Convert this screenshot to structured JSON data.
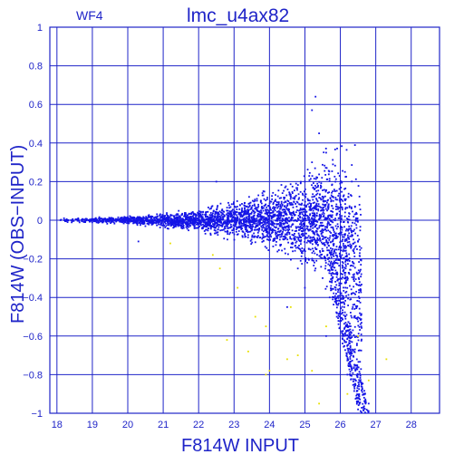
{
  "chart_data": {
    "type": "scatter",
    "title": "lmc_u4ax82",
    "subtitle": "WF4",
    "xlabel": "F814W  INPUT",
    "ylabel": "F814W  (OBS−INPUT)",
    "xlim": [
      17.8,
      28.8
    ],
    "ylim": [
      -1,
      1
    ],
    "xticks": [
      "18",
      "19",
      "20",
      "21",
      "22",
      "23",
      "24",
      "25",
      "26",
      "27",
      "28"
    ],
    "yticks": [
      "1",
      "0.8",
      "0.6",
      "0.4",
      "0.2",
      "0",
      "−0.2",
      "−0.4",
      "−0.6",
      "−0.8",
      "−1"
    ],
    "grid": true,
    "colors": {
      "axes": "#1f24c8",
      "main_points": "#1414e6",
      "secondary_points": "#e8e000"
    },
    "series": [
      {
        "color": "main_points",
        "points": [
          [
            18.1,
            0.0
          ],
          [
            18.2,
            0.01
          ],
          [
            18.3,
            -0.01
          ],
          [
            18.4,
            0.0
          ],
          [
            18.6,
            0.01
          ],
          [
            18.8,
            -0.01
          ],
          [
            19.0,
            0.0
          ],
          [
            19.2,
            0.01
          ],
          [
            19.4,
            -0.01
          ],
          [
            19.6,
            0.0
          ],
          [
            19.8,
            0.01
          ],
          [
            20.0,
            0.0
          ],
          [
            20.2,
            -0.01
          ],
          [
            20.4,
            0.01
          ],
          [
            20.6,
            0.0
          ],
          [
            20.8,
            -0.01
          ],
          [
            21.0,
            0.01
          ],
          [
            21.2,
            0.0
          ],
          [
            21.4,
            -0.02
          ],
          [
            21.6,
            0.02
          ],
          [
            21.8,
            0.0
          ],
          [
            22.0,
            -0.02
          ],
          [
            22.2,
            0.03
          ],
          [
            22.4,
            -0.03
          ],
          [
            22.6,
            0.02
          ],
          [
            22.8,
            -0.02
          ],
          [
            23.0,
            0.03
          ],
          [
            23.2,
            -0.04
          ],
          [
            23.4,
            0.04
          ],
          [
            23.6,
            -0.05
          ],
          [
            23.8,
            0.06
          ],
          [
            24.0,
            -0.07
          ],
          [
            24.2,
            0.08
          ],
          [
            24.4,
            -0.1
          ],
          [
            24.6,
            0.12
          ],
          [
            24.8,
            -0.14
          ],
          [
            25.0,
            0.2
          ],
          [
            25.1,
            -0.2
          ],
          [
            25.2,
            0.3
          ],
          [
            25.3,
            -0.25
          ],
          [
            25.4,
            0.45
          ],
          [
            25.5,
            -0.3
          ],
          [
            25.6,
            0.35
          ],
          [
            25.7,
            -0.4
          ],
          [
            25.8,
            0.1
          ],
          [
            25.9,
            -0.5
          ],
          [
            26.0,
            -0.3
          ],
          [
            26.1,
            -0.6
          ],
          [
            26.2,
            -0.55
          ],
          [
            26.3,
            -0.7
          ],
          [
            26.4,
            -0.75
          ],
          [
            26.5,
            -0.8
          ],
          [
            26.6,
            -0.85
          ],
          [
            26.7,
            -0.9
          ],
          [
            26.8,
            -0.95
          ],
          [
            22.5,
            0.2
          ],
          [
            20.3,
            -0.11
          ],
          [
            25.3,
            0.64
          ],
          [
            25.2,
            0.57
          ],
          [
            24.5,
            -0.45
          ],
          [
            26.0,
            -0.38
          ],
          [
            25.0,
            -0.35
          ],
          [
            24.8,
            -0.25
          ],
          [
            25.6,
            -0.6
          ],
          [
            26.2,
            -0.8
          ],
          [
            26.5,
            -0.98
          ]
        ]
      },
      {
        "color": "secondary_points",
        "points": [
          [
            21.2,
            -0.12
          ],
          [
            22.4,
            -0.18
          ],
          [
            22.6,
            -0.25
          ],
          [
            23.1,
            -0.35
          ],
          [
            23.6,
            -0.5
          ],
          [
            23.9,
            -0.55
          ],
          [
            22.8,
            -0.62
          ],
          [
            23.4,
            -0.68
          ],
          [
            24.0,
            -0.78
          ],
          [
            24.5,
            -0.72
          ],
          [
            24.8,
            -0.7
          ],
          [
            25.2,
            -0.78
          ],
          [
            25.6,
            -0.55
          ],
          [
            26.2,
            -0.9
          ],
          [
            26.8,
            -0.83
          ],
          [
            27.3,
            -0.72
          ],
          [
            25.4,
            -0.95
          ],
          [
            24.6,
            -0.45
          ],
          [
            23.9,
            -0.8
          ],
          [
            26.5,
            -0.6
          ]
        ]
      }
    ]
  }
}
